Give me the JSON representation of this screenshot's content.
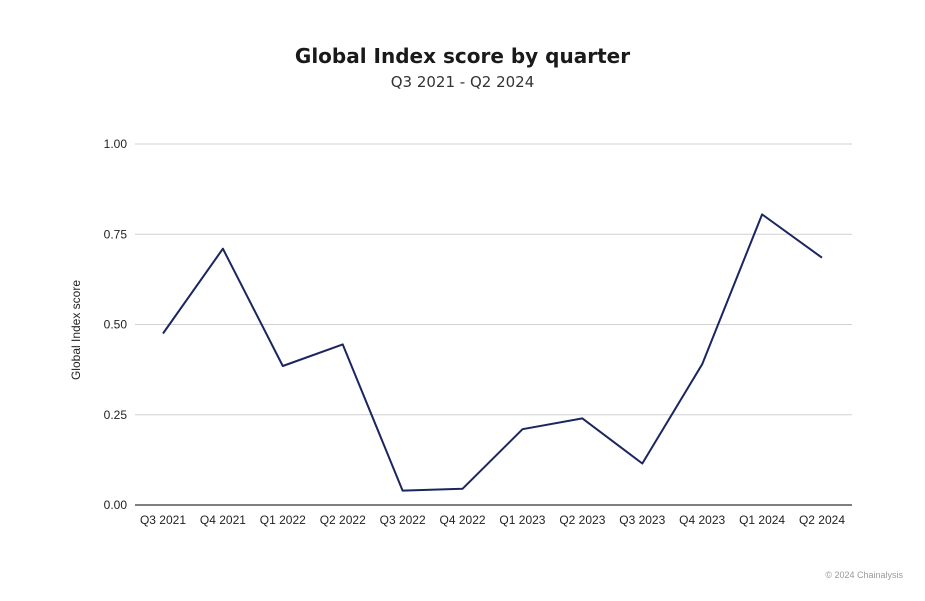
{
  "chart_data": {
    "type": "line",
    "title": "Global Index score by quarter",
    "subtitle": "Q3 2021 - Q2 2024",
    "ylabel": "Global Index score",
    "xlabel": "",
    "categories": [
      "Q3 2021",
      "Q4 2021",
      "Q1 2022",
      "Q2 2022",
      "Q3 2022",
      "Q4 2022",
      "Q1 2023",
      "Q2 2023",
      "Q3 2023",
      "Q4 2023",
      "Q1 2024",
      "Q2 2024"
    ],
    "series": [
      {
        "values": [
          0.475,
          0.71,
          0.385,
          0.445,
          0.04,
          0.045,
          0.21,
          0.24,
          0.115,
          0.39,
          0.805,
          0.685
        ]
      }
    ],
    "ylim": [
      0,
      1
    ],
    "yticks": [
      "0.00",
      "0.25",
      "0.50",
      "0.75",
      "1.00"
    ],
    "ytick_values": [
      0,
      0.25,
      0.5,
      0.75,
      1
    ],
    "grid": true,
    "line_color": "#1b2560",
    "grid_color": "#d0d0d0",
    "axis_color": "#333333"
  },
  "footer": {
    "credit": "© 2024 Chainalysis"
  }
}
